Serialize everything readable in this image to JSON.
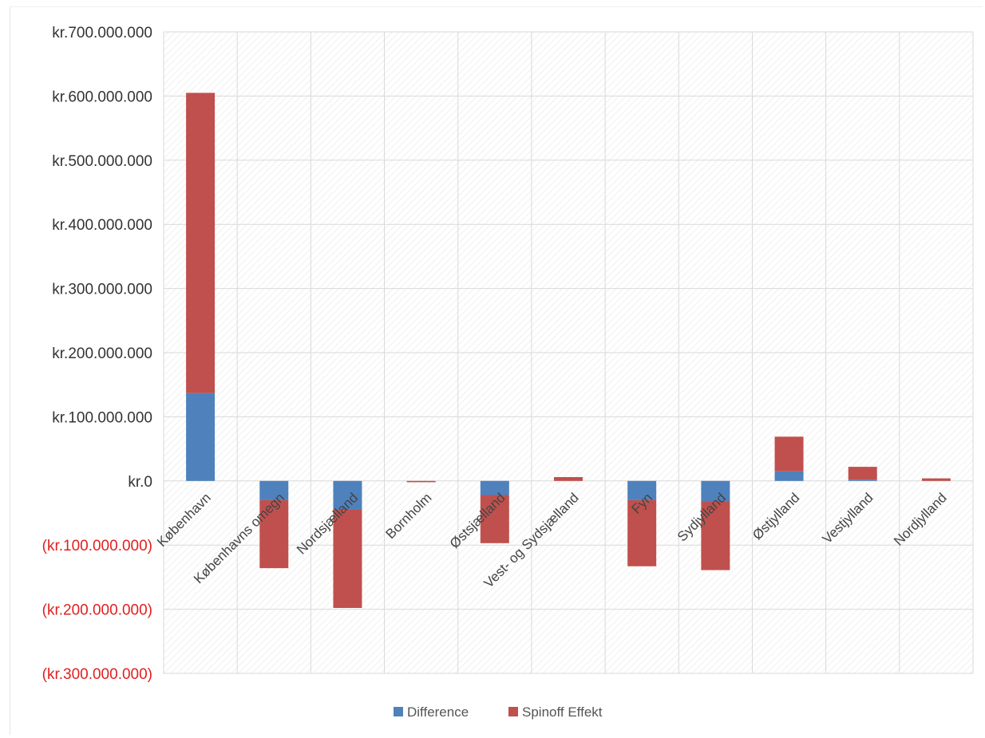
{
  "chart_data": {
    "type": "bar",
    "stacked": true,
    "categories": [
      "København",
      "Københavns omegn",
      "Nordsjælland",
      "Bornholm",
      "Østsjælland",
      "Vest- og Sydsjælland",
      "Fyn",
      "Sydjylland",
      "Østjylland",
      "Vestjylland",
      "Nordjylland"
    ],
    "series": [
      {
        "name": "Difference",
        "color": "#4f81bd",
        "values": [
          137000000,
          -30000000,
          -45000000,
          0,
          -22000000,
          0,
          -30000000,
          -32000000,
          15000000,
          2000000,
          0
        ]
      },
      {
        "name": "Spinoff Effekt",
        "color": "#c0504d",
        "values": [
          468000000,
          -106000000,
          -153000000,
          -2000000,
          -75000000,
          6000000,
          -103000000,
          -107000000,
          54000000,
          20000000,
          4000000
        ]
      }
    ],
    "ylim": [
      -300000000,
      700000000
    ],
    "yticks": [
      700000000,
      600000000,
      500000000,
      400000000,
      300000000,
      200000000,
      100000000,
      0,
      -100000000,
      -200000000,
      -300000000
    ],
    "ytick_labels": [
      "kr.700.000.000",
      "kr.600.000.000",
      "kr.500.000.000",
      "kr.400.000.000",
      "kr.300.000.000",
      "kr.200.000.000",
      "kr.100.000.000",
      "kr.0",
      "(kr.100.000.000)",
      "(kr.200.000.000)",
      "(kr.300.000.000)"
    ],
    "positive_label_color": "#333333",
    "negative_label_color": "#e02020",
    "grid": true,
    "legend_position": "bottom",
    "title": "",
    "xlabel": "",
    "ylabel": ""
  }
}
